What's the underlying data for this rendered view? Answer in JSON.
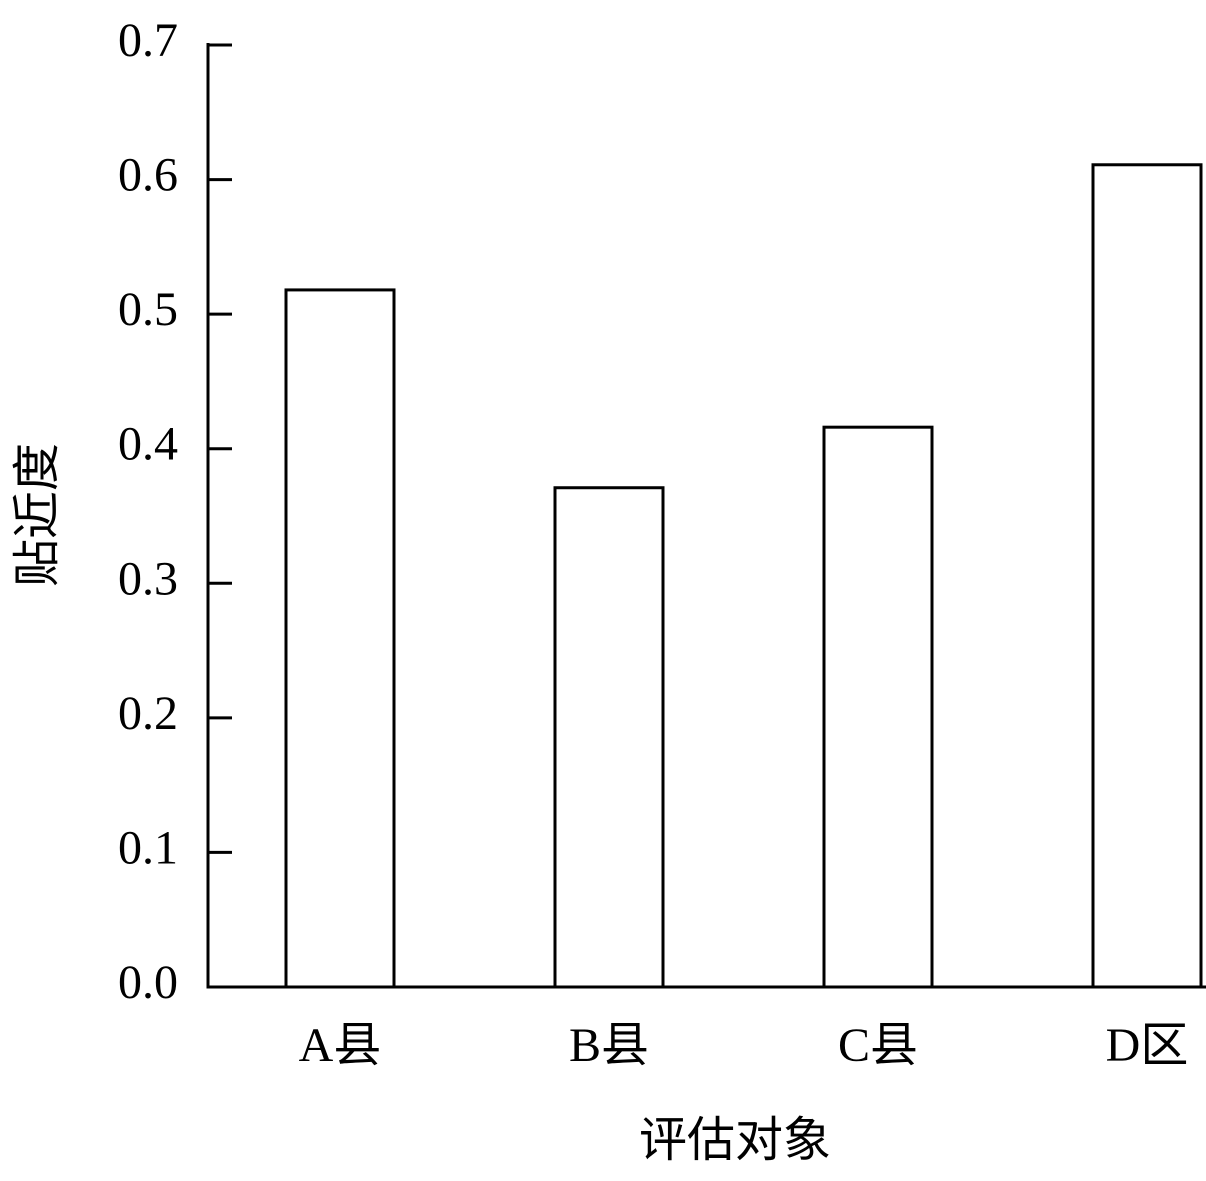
{
  "chart_data": {
    "type": "bar",
    "xlabel": "评估对象",
    "ylabel": "贴近度",
    "categories": [
      "A县",
      "B县",
      "C县",
      "D区"
    ],
    "values": [
      0.518,
      0.371,
      0.416,
      0.611
    ],
    "color": "#ffffff",
    "edgecolor": "#000000",
    "ylim": [
      0,
      0.7
    ],
    "yticks": [
      {
        "value": 0,
        "label": "0.0"
      },
      0.1,
      0.2,
      0.3,
      0.4,
      0.5,
      0.6,
      0.7
    ],
    "grid": false
  }
}
